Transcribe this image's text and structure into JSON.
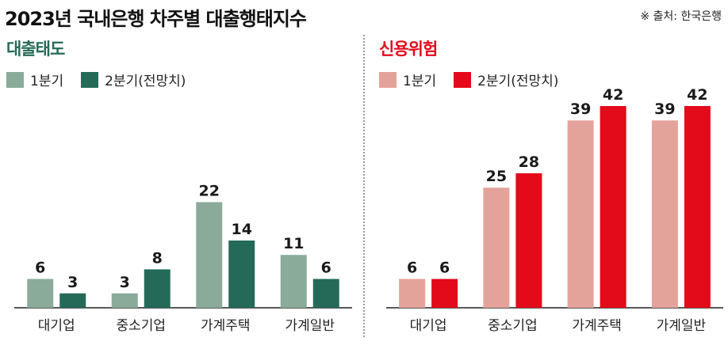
{
  "header": {
    "title": "2023년 국내은행 차주별 대출행태지수",
    "source": "※ 출처: 한국은행"
  },
  "colors": {
    "loan_q1": "#8aab9a",
    "loan_q2": "#256a58",
    "loan_title": "#256a58",
    "risk_q1": "#e3a39b",
    "risk_q2": "#e30a1a",
    "risk_title": "#e30a1a"
  },
  "chart_data": [
    {
      "type": "bar",
      "title": "대출태도",
      "categories": [
        "대기업",
        "중소기업",
        "가계주택",
        "가계일반"
      ],
      "series": [
        {
          "name": "1분기",
          "values": [
            6,
            3,
            22,
            11
          ]
        },
        {
          "name": "2분기(전망치)",
          "values": [
            3,
            8,
            14,
            6
          ]
        }
      ],
      "ylim": [
        0,
        42
      ],
      "grid": false,
      "legend": "top-left"
    },
    {
      "type": "bar",
      "title": "신용위험",
      "categories": [
        "대기업",
        "중소기업",
        "가계주택",
        "가계일반"
      ],
      "series": [
        {
          "name": "1분기",
          "values": [
            6,
            25,
            39,
            39
          ]
        },
        {
          "name": "2분기(전망치)",
          "values": [
            6,
            28,
            42,
            42
          ]
        }
      ],
      "ylim": [
        0,
        42
      ],
      "grid": false,
      "legend": "top-left"
    }
  ]
}
